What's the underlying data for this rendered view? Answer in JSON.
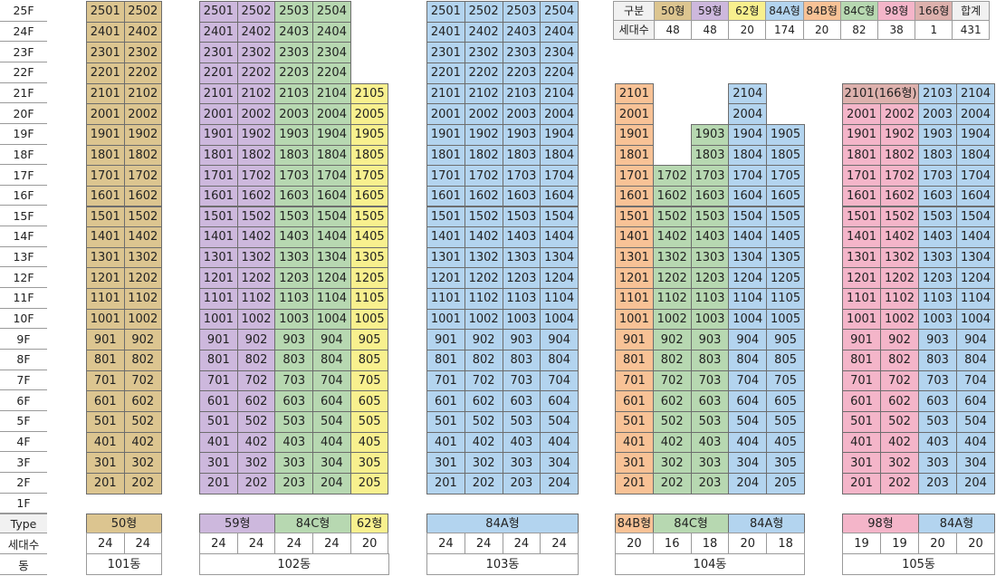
{
  "colors": {
    "t50": "#dcc590",
    "t59": "#cdb8dd",
    "t84C": "#b7d8b1",
    "t62": "#f8f08e",
    "t84A": "#b3d4ef",
    "t84B": "#f8c296",
    "t98": "#f4b5c9",
    "t166": "#ddb1ad",
    "header_gray": "#f1f1f1"
  },
  "floors": [
    "25F",
    "24F",
    "23F",
    "22F",
    "21F",
    "20F",
    "19F",
    "18F",
    "17F",
    "16F",
    "15F",
    "14F",
    "13F",
    "12F",
    "11F",
    "10F",
    "9F",
    "8F",
    "7F",
    "6F",
    "5F",
    "4F",
    "3F",
    "2F",
    "1F"
  ],
  "row_labels": {
    "type": "Type",
    "households": "세대수",
    "building": "동"
  },
  "summary": {
    "headers": [
      "구분",
      "50형",
      "59형",
      "62형",
      "84A형",
      "84B형",
      "84C형",
      "98형",
      "166형",
      "합계"
    ],
    "header_types": [
      "",
      "t50",
      "t59",
      "t62",
      "t84A",
      "t84B",
      "t84C",
      "t98",
      "t166",
      ""
    ],
    "row_label": "세대수",
    "values": [
      "48",
      "48",
      "20",
      "174",
      "20",
      "82",
      "38",
      "1",
      "431"
    ]
  },
  "buildings": [
    {
      "name": "101동",
      "columns": [
        {
          "line": "01",
          "type": "t50",
          "top": 25,
          "households": "24"
        },
        {
          "line": "02",
          "type": "t50",
          "top": 25,
          "households": "24"
        }
      ],
      "type_groups": [
        {
          "label": "50형",
          "type": "t50",
          "span": 2
        }
      ],
      "special": []
    },
    {
      "name": "102동",
      "columns": [
        {
          "line": "01",
          "type": "t59",
          "top": 25,
          "households": "24"
        },
        {
          "line": "02",
          "type": "t59",
          "top": 25,
          "households": "24"
        },
        {
          "line": "03",
          "type": "t84C",
          "top": 25,
          "households": "24"
        },
        {
          "line": "04",
          "type": "t84C",
          "top": 25,
          "households": "24"
        },
        {
          "line": "05",
          "type": "t62",
          "top": 21,
          "households": "20"
        }
      ],
      "type_groups": [
        {
          "label": "59형",
          "type": "t59",
          "span": 2
        },
        {
          "label": "84C형",
          "type": "t84C",
          "span": 2
        },
        {
          "label": "62형",
          "type": "t62",
          "span": 1
        }
      ],
      "special": []
    },
    {
      "name": "103동",
      "columns": [
        {
          "line": "01",
          "type": "t84A",
          "top": 25,
          "households": "24"
        },
        {
          "line": "02",
          "type": "t84A",
          "top": 25,
          "households": "24"
        },
        {
          "line": "03",
          "type": "t84A",
          "top": 25,
          "households": "24"
        },
        {
          "line": "04",
          "type": "t84A",
          "top": 25,
          "households": "24"
        }
      ],
      "type_groups": [
        {
          "label": "84A형",
          "type": "t84A",
          "span": 4
        }
      ],
      "special": []
    },
    {
      "name": "104동",
      "columns": [
        {
          "line": "01",
          "type": "t84B",
          "top": 21,
          "households": "20"
        },
        {
          "line": "02",
          "type": "t84C",
          "top": 17,
          "households": "16"
        },
        {
          "line": "03",
          "type": "t84C",
          "top": 19,
          "households": "18"
        },
        {
          "line": "04",
          "type": "t84A",
          "top": 21,
          "households": "20"
        },
        {
          "line": "05",
          "type": "t84A",
          "top": 19,
          "households": "18"
        }
      ],
      "type_groups": [
        {
          "label": "84B형",
          "type": "t84B",
          "span": 1
        },
        {
          "label": "84C형",
          "type": "t84C",
          "span": 2
        },
        {
          "label": "84A형",
          "type": "t84A",
          "span": 2
        }
      ],
      "special": []
    },
    {
      "name": "105동",
      "columns": [
        {
          "line": "01",
          "type": "t98",
          "top": 20,
          "households": "19"
        },
        {
          "line": "02",
          "type": "t98",
          "top": 20,
          "households": "19"
        },
        {
          "line": "03",
          "type": "t84A",
          "top": 21,
          "households": "20"
        },
        {
          "line": "04",
          "type": "t84A",
          "top": 21,
          "households": "20"
        }
      ],
      "type_groups": [
        {
          "label": "98형",
          "type": "t98",
          "span": 2
        },
        {
          "label": "84A형",
          "type": "t84A",
          "span": 2
        }
      ],
      "special": [
        {
          "label": "2101(166형)",
          "type": "t166",
          "floor": 21,
          "span": 2
        }
      ]
    }
  ]
}
